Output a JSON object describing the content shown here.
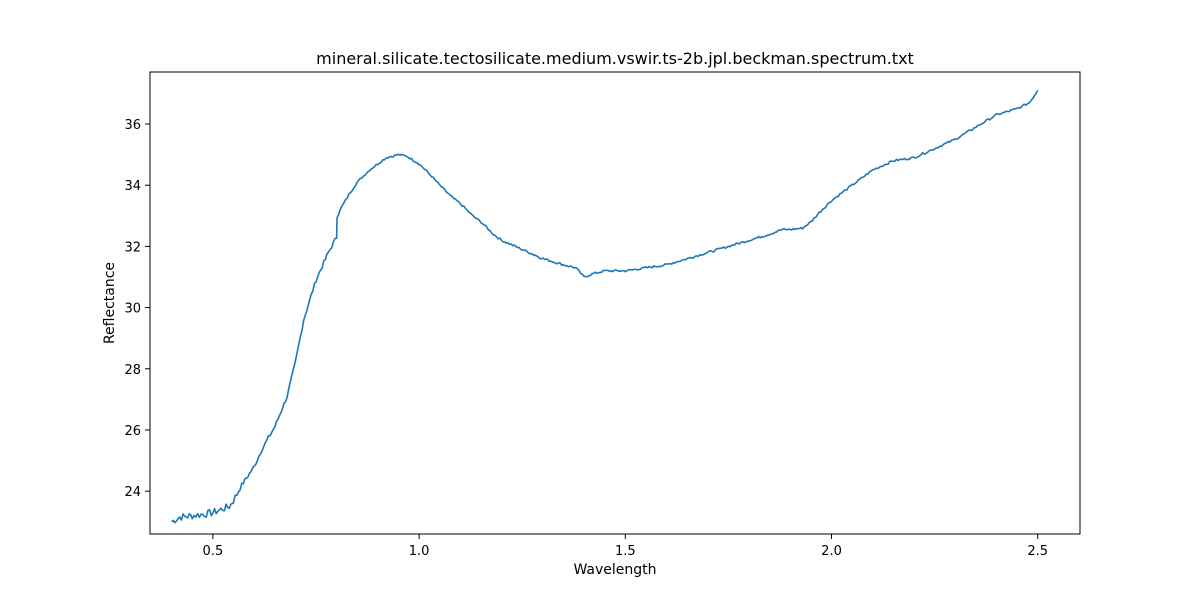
{
  "chart_data": {
    "type": "line",
    "title": "mineral.silicate.tectosilicate.medium.vswir.ts-2b.jpl.beckman.spectrum.txt",
    "xlabel": "Wavelength",
    "ylabel": "Reflectance",
    "xlim": [
      0.3475,
      2.6025
    ],
    "ylim": [
      22.6,
      37.7
    ],
    "x_ticks": [
      0.5,
      1.0,
      1.5,
      2.0,
      2.5
    ],
    "x_tick_labels": [
      "0.5",
      "1.0",
      "1.5",
      "2.0",
      "2.5"
    ],
    "y_ticks": [
      24,
      26,
      28,
      30,
      32,
      34,
      36
    ],
    "y_tick_labels": [
      "24",
      "26",
      "28",
      "30",
      "32",
      "34",
      "36"
    ],
    "grid": false,
    "legend": "none",
    "line_color": "#1f77b4",
    "series": [
      {
        "x": [
          0.4,
          0.42,
          0.45,
          0.48,
          0.5,
          0.52,
          0.54,
          0.55,
          0.57,
          0.6,
          0.62,
          0.65,
          0.68,
          0.7,
          0.72,
          0.75,
          0.78,
          0.8,
          0.801,
          0.83,
          0.85,
          0.88,
          0.9,
          0.92,
          0.95,
          0.97,
          1.0,
          1.03,
          1.05,
          1.08,
          1.1,
          1.13,
          1.15,
          1.18,
          1.2,
          1.25,
          1.3,
          1.35,
          1.38,
          1.4,
          1.42,
          1.45,
          1.5,
          1.55,
          1.6,
          1.65,
          1.7,
          1.75,
          1.8,
          1.85,
          1.88,
          1.9,
          1.93,
          1.95,
          1.97,
          2.0,
          2.05,
          2.1,
          2.15,
          2.2,
          2.25,
          2.3,
          2.35,
          2.4,
          2.45,
          2.48,
          2.5
        ],
        "y": [
          23.0,
          23.15,
          23.2,
          23.25,
          23.3,
          23.4,
          23.5,
          23.7,
          24.2,
          24.8,
          25.4,
          26.1,
          27.1,
          28.2,
          29.6,
          30.9,
          31.8,
          32.3,
          33.0,
          33.7,
          34.1,
          34.5,
          34.7,
          34.9,
          35.0,
          34.95,
          34.7,
          34.3,
          34.0,
          33.6,
          33.4,
          33.0,
          32.8,
          32.4,
          32.2,
          31.9,
          31.6,
          31.4,
          31.3,
          31.0,
          31.1,
          31.2,
          31.2,
          31.3,
          31.4,
          31.6,
          31.8,
          32.0,
          32.2,
          32.4,
          32.55,
          32.55,
          32.6,
          32.8,
          33.1,
          33.5,
          34.0,
          34.5,
          34.8,
          34.9,
          35.2,
          35.5,
          35.9,
          36.3,
          36.5,
          36.7,
          37.1
        ]
      }
    ]
  }
}
